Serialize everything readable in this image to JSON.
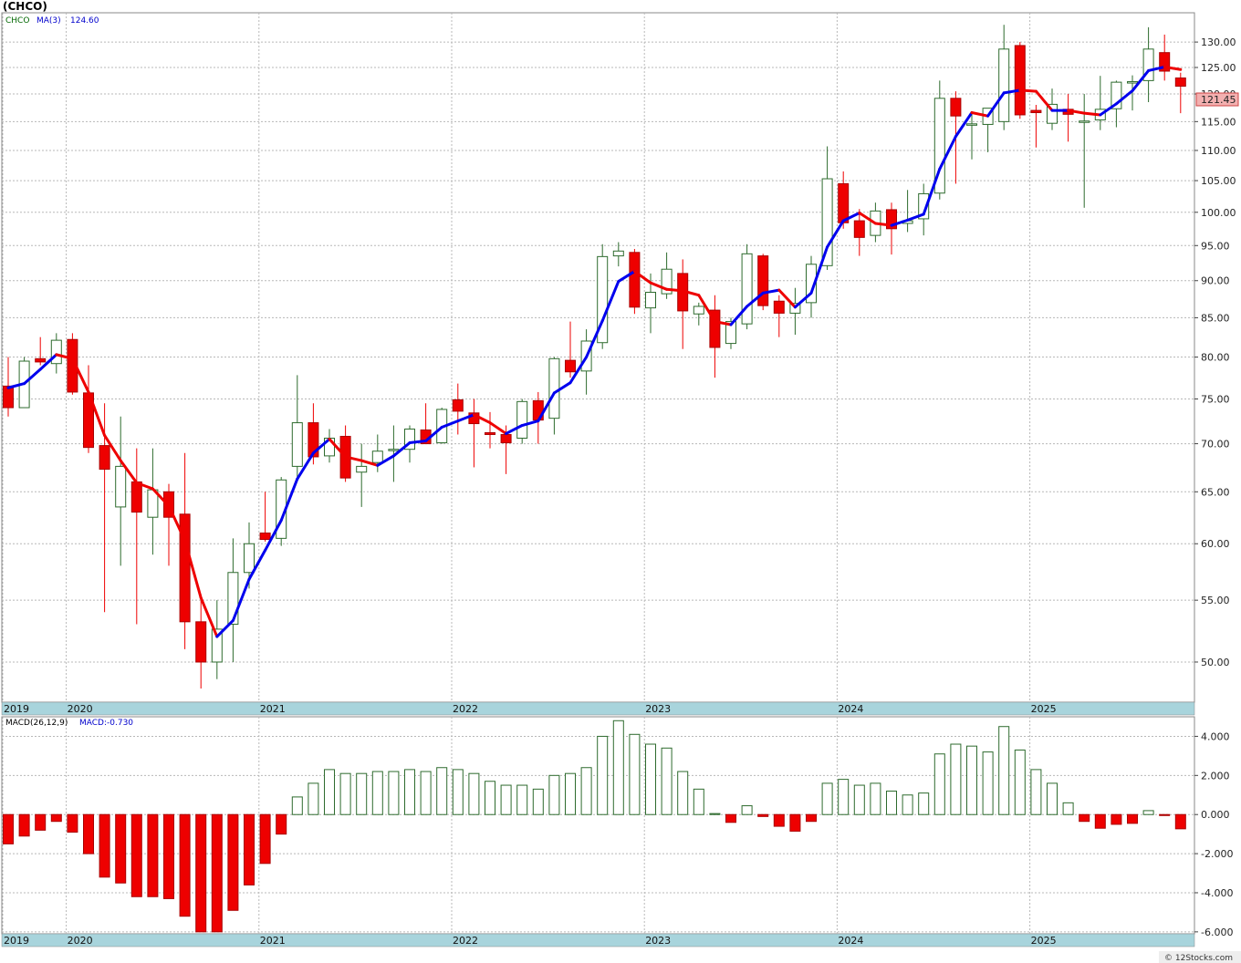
{
  "title": "(CHCO)",
  "watermark": "© 12Stocks.com",
  "price_legend": {
    "symbol": "CHCO",
    "ma_label": "MA(3)",
    "ma_value": "124.60"
  },
  "macd_legend": {
    "label": "MACD(26,12,9)",
    "value_label": "MACD:-0.730"
  },
  "last_price_label": "121.45",
  "year_labels": [
    {
      "label": "2019",
      "i": 0
    },
    {
      "label": "2020",
      "i": 4
    },
    {
      "label": "2021",
      "i": 16
    },
    {
      "label": "2022",
      "i": 28
    },
    {
      "label": "2023",
      "i": 40
    },
    {
      "label": "2024",
      "i": 52
    },
    {
      "label": "2025",
      "i": 64
    }
  ],
  "colors": {
    "up": "#2e6b2e",
    "down": "#ee0000",
    "ma_up": "#0000ee",
    "ma_down": "#ee0000",
    "grid": "#b8b8b8",
    "axis_band": "#a8d4dc",
    "last_badge": "#f3b0b0"
  },
  "chart_data": [
    {
      "type": "candlestick",
      "scale": "log",
      "ylim": [
        47,
        136
      ],
      "yticks": [
        "50.00",
        "55.00",
        "60.00",
        "65.00",
        "70.00",
        "75.00",
        "80.00",
        "85.00",
        "90.00",
        "95.00",
        "100.00",
        "105.00",
        "110.00",
        "115.00",
        "120.00",
        "125.00",
        "130.00"
      ],
      "ohlc": [
        [
          76.5,
          80,
          73,
          74
        ],
        [
          74,
          80,
          74,
          79.5
        ],
        [
          79.8,
          82.5,
          79,
          79.4
        ],
        [
          79.2,
          83,
          78,
          82.1
        ],
        [
          82.2,
          83,
          75.5,
          75.8
        ],
        [
          75.7,
          79,
          69,
          69.6
        ],
        [
          69.8,
          74.5,
          54,
          67.3
        ],
        [
          63.5,
          73,
          58,
          67.6
        ],
        [
          66,
          69.5,
          53,
          63
        ],
        [
          62.5,
          69.5,
          59,
          65.2
        ],
        [
          65,
          65.8,
          58,
          62.5
        ],
        [
          62.8,
          69,
          51,
          53.2
        ],
        [
          53.2,
          55.5,
          48,
          50
        ],
        [
          50,
          55,
          48.7,
          52.6
        ],
        [
          53,
          60.5,
          50,
          57.4
        ],
        [
          57.4,
          62,
          56,
          60
        ],
        [
          61,
          65,
          60.2,
          60.4
        ],
        [
          60.5,
          66.5,
          59.8,
          66.2
        ],
        [
          67.6,
          77.8,
          66.5,
          72.3
        ],
        [
          72.3,
          74.5,
          67.8,
          68.6
        ],
        [
          68.7,
          71.6,
          68,
          70.6
        ],
        [
          70.8,
          72,
          66,
          66.4
        ],
        [
          67,
          70,
          63.5,
          67.6
        ],
        [
          68,
          71,
          67,
          69.2
        ],
        [
          69.3,
          72,
          66,
          69.4
        ],
        [
          69.4,
          72,
          68,
          71.6
        ],
        [
          71.5,
          74.5,
          70.5,
          70
        ],
        [
          70.1,
          74,
          70,
          73.8
        ],
        [
          74.9,
          76.8,
          71,
          73.6
        ],
        [
          73.4,
          75,
          67.5,
          72.2
        ],
        [
          71.2,
          73.5,
          69.5,
          71
        ],
        [
          71,
          72,
          66.8,
          70.1
        ],
        [
          70.6,
          75,
          70,
          74.7
        ],
        [
          74.8,
          75.8,
          70,
          72.6
        ],
        [
          72.8,
          80,
          71,
          79.8
        ],
        [
          79.6,
          84.5,
          77.5,
          78.2
        ],
        [
          78.3,
          83.5,
          75.5,
          82
        ],
        [
          81.8,
          95.2,
          81,
          93.4
        ],
        [
          93.5,
          95.5,
          92,
          94.2
        ],
        [
          94,
          94.5,
          85.5,
          86.4
        ],
        [
          86.3,
          91,
          83,
          88.4
        ],
        [
          88.2,
          94,
          87.5,
          91.6
        ],
        [
          91,
          93,
          81,
          85.9
        ],
        [
          85.5,
          87,
          84,
          86.5
        ],
        [
          86,
          88,
          77.5,
          81.2
        ],
        [
          81.7,
          85,
          81,
          84.5
        ],
        [
          84.2,
          95.2,
          83.5,
          93.8
        ],
        [
          93.5,
          93.8,
          86,
          86.6
        ],
        [
          87.2,
          88,
          82.5,
          85.6
        ],
        [
          85.6,
          89,
          82.8,
          86.9
        ],
        [
          87,
          93.5,
          85,
          92.3
        ],
        [
          92.1,
          110.7,
          91.5,
          105.3
        ],
        [
          104.5,
          106.5,
          97.5,
          98.4
        ],
        [
          98.7,
          100.5,
          93.5,
          96.2
        ],
        [
          96.5,
          101.5,
          95.5,
          100.2
        ],
        [
          100.4,
          101.5,
          93.7,
          97.5
        ],
        [
          98.3,
          103.5,
          97,
          98.7
        ],
        [
          99,
          104.5,
          96.5,
          102.9
        ],
        [
          103,
          122.5,
          102,
          119.2
        ],
        [
          119.2,
          120.5,
          104.5,
          116
        ],
        [
          114.4,
          116.5,
          108.5,
          114.6
        ],
        [
          114.5,
          117,
          109.7,
          117.4
        ],
        [
          115,
          133.5,
          113.5,
          128.6
        ],
        [
          129.3,
          130,
          115.5,
          116.2
        ],
        [
          117,
          118,
          110.5,
          116.6
        ],
        [
          114.7,
          121,
          113.5,
          118.1
        ],
        [
          117.2,
          120,
          111.5,
          116.3
        ],
        [
          115,
          120,
          100.7,
          115.1
        ],
        [
          115.3,
          123.4,
          113.5,
          117.2
        ],
        [
          117.3,
          122.5,
          114,
          122.2
        ],
        [
          122.1,
          123.5,
          117,
          122.3
        ],
        [
          122.5,
          133,
          118.5,
          128.6
        ],
        [
          127.9,
          131.5,
          122.5,
          124.3
        ],
        [
          123,
          124,
          116.5,
          121.45
        ]
      ],
      "ma": [
        76.3,
        76.8,
        78.5,
        80.3,
        79.8,
        75.8,
        70.9,
        68.2,
        65.9,
        65.3,
        63.6,
        60.3,
        55.2,
        52.0,
        53.3,
        56.8,
        59.4,
        62.2,
        66.3,
        69.0,
        70.5,
        68.6,
        68.2,
        67.7,
        68.7,
        70.1,
        70.3,
        71.8,
        72.5,
        73.2,
        72.3,
        71.1,
        72.0,
        72.5,
        75.7,
        76.9,
        80.0,
        84.6,
        89.9,
        91.3,
        89.7,
        88.8,
        88.6,
        88.0,
        84.5,
        84.1,
        86.5,
        88.3,
        88.7,
        86.4,
        88.3,
        94.8,
        98.7,
        99.9,
        98.3,
        98.0,
        98.8,
        99.7,
        106.9,
        112.4,
        116.6,
        116.0,
        120.2,
        120.7,
        120.5,
        117.0,
        117.0,
        116.5,
        116.2,
        118.2,
        120.6,
        124.4,
        125.1,
        124.6
      ],
      "xlabel": "",
      "ylabel": ""
    },
    {
      "type": "bar",
      "ylim": [
        -6.1,
        5
      ],
      "yticks": [
        "-6.000",
        "-4.000",
        "-2.000",
        "0.000",
        "2.000",
        "4.000"
      ],
      "values": [
        -1.5,
        -1.1,
        -0.8,
        -0.35,
        -0.9,
        -2,
        -3.2,
        -3.5,
        -4.2,
        -4.2,
        -4.3,
        -5.2,
        -6.0,
        -6.0,
        -4.9,
        -3.6,
        -2.5,
        -1.0,
        0.9,
        1.6,
        2.3,
        2.1,
        2.1,
        2.2,
        2.2,
        2.3,
        2.2,
        2.4,
        2.3,
        2.1,
        1.7,
        1.5,
        1.5,
        1.3,
        2.0,
        2.1,
        2.4,
        4.0,
        4.8,
        4.1,
        3.6,
        3.4,
        2.2,
        1.3,
        0.05,
        -0.4,
        0.45,
        -0.1,
        -0.6,
        -0.85,
        -0.35,
        1.6,
        1.8,
        1.5,
        1.6,
        1.2,
        1.0,
        1.1,
        3.1,
        3.6,
        3.5,
        3.2,
        4.5,
        3.3,
        2.3,
        1.6,
        0.6,
        -0.35,
        -0.7,
        -0.5,
        -0.45,
        0.2,
        -0.05,
        -0.73
      ],
      "xlabel": "",
      "ylabel": ""
    }
  ]
}
